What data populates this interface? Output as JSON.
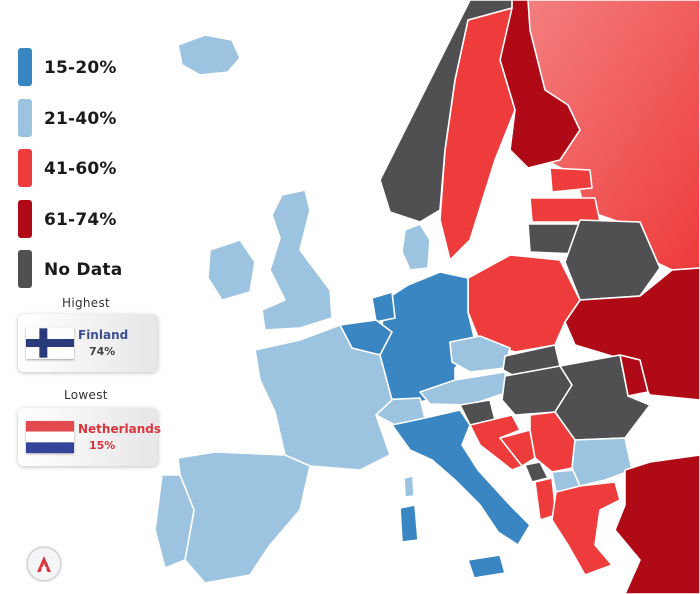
{
  "colors": {
    "range_15_20": "#3a86c3",
    "range_21_40": "#9cc3e0",
    "range_41_60": "#ee3b3b",
    "range_61_74": "#b00a16",
    "no_data": "#505052"
  },
  "legend": {
    "items": [
      {
        "label": "15-20%",
        "color": "#3a86c3"
      },
      {
        "label": "21-40%",
        "color": "#9cc3e0"
      },
      {
        "label": "41-60%",
        "color": "#ee3b3b"
      },
      {
        "label": "61-74%",
        "color": "#b00a16"
      },
      {
        "label": "No Data",
        "color": "#505052"
      }
    ]
  },
  "highest": {
    "caption": "Highest",
    "country": "Finland",
    "value": "74%",
    "name_color": "#3d4f8f"
  },
  "lowest": {
    "caption": "Lowest",
    "country": "Netherlands",
    "value": "15%",
    "name_color": "#d8343e"
  },
  "logo": {
    "letter": "A"
  },
  "regions": [
    {
      "id": "portugal",
      "category": "range_21_40"
    },
    {
      "id": "spain",
      "category": "range_21_40"
    },
    {
      "id": "france",
      "category": "range_21_40"
    },
    {
      "id": "corsica",
      "category": "range_21_40"
    },
    {
      "id": "united-kingdom",
      "category": "range_21_40"
    },
    {
      "id": "ireland",
      "category": "range_21_40"
    },
    {
      "id": "iceland",
      "category": "range_21_40"
    },
    {
      "id": "denmark",
      "category": "range_21_40"
    },
    {
      "id": "switzerland",
      "category": "range_21_40"
    },
    {
      "id": "austria",
      "category": "range_21_40"
    },
    {
      "id": "czechia",
      "category": "range_21_40"
    },
    {
      "id": "bulgaria",
      "category": "range_21_40"
    },
    {
      "id": "north-macedonia",
      "category": "range_21_40"
    },
    {
      "id": "netherlands",
      "category": "range_15_20"
    },
    {
      "id": "belgium",
      "category": "range_15_20"
    },
    {
      "id": "germany",
      "category": "range_15_20"
    },
    {
      "id": "italy",
      "category": "range_15_20"
    },
    {
      "id": "sardinia",
      "category": "range_15_20"
    },
    {
      "id": "sicily",
      "category": "range_15_20"
    },
    {
      "id": "norway",
      "category": "no_data"
    },
    {
      "id": "lithuania",
      "category": "no_data"
    },
    {
      "id": "belarus",
      "category": "no_data"
    },
    {
      "id": "slovakia",
      "category": "no_data"
    },
    {
      "id": "hungary",
      "category": "no_data"
    },
    {
      "id": "romania",
      "category": "no_data"
    },
    {
      "id": "slovenia",
      "category": "no_data"
    },
    {
      "id": "montenegro",
      "category": "no_data"
    },
    {
      "id": "sweden",
      "category": "range_41_60"
    },
    {
      "id": "estonia",
      "category": "range_41_60"
    },
    {
      "id": "latvia",
      "category": "range_41_60"
    },
    {
      "id": "poland",
      "category": "range_41_60"
    },
    {
      "id": "croatia",
      "category": "range_41_60"
    },
    {
      "id": "bosnia",
      "category": "range_41_60"
    },
    {
      "id": "serbia",
      "category": "range_41_60"
    },
    {
      "id": "albania",
      "category": "range_41_60"
    },
    {
      "id": "greece",
      "category": "range_41_60"
    },
    {
      "id": "russia",
      "category": "range_41_60"
    },
    {
      "id": "finland",
      "category": "range_61_74"
    },
    {
      "id": "ukraine",
      "category": "range_61_74"
    },
    {
      "id": "moldova",
      "category": "range_61_74"
    },
    {
      "id": "turkey",
      "category": "range_61_74"
    }
  ]
}
